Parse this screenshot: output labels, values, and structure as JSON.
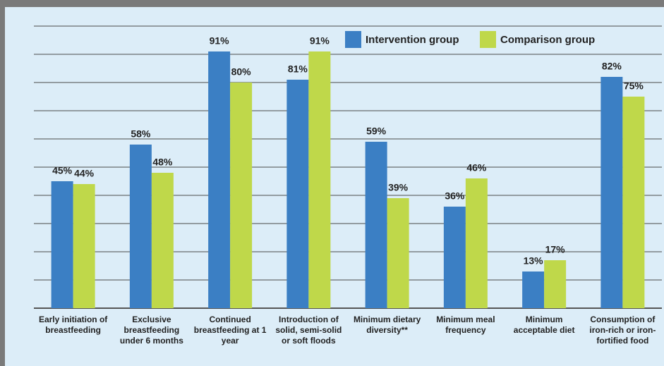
{
  "chart_data": {
    "type": "bar",
    "categories": [
      "Early initiation of breastfeeding",
      "Exclusive breastfeeding under 6 months",
      "Continued breastfeeding at 1 year",
      "Introduction of solid, semi-solid or soft floods",
      "Minimum dietary diversity**",
      "Minimum meal frequency",
      "Minimum acceptable diet",
      "Consumption of iron-rich or iron-fortified food"
    ],
    "series": [
      {
        "name": "Intervention group",
        "color": "#3b7fc4",
        "values": [
          45,
          58,
          91,
          81,
          59,
          36,
          13,
          82
        ],
        "value_labels": [
          "45%",
          "58%",
          "91%",
          "81%",
          "59%",
          "36%",
          "13%",
          "82%"
        ]
      },
      {
        "name": "Comparison group",
        "color": "#bfd84a",
        "values": [
          44,
          48,
          80,
          91,
          39,
          46,
          17,
          75
        ],
        "value_labels": [
          "44%",
          "48%",
          "80%",
          "91%",
          "39%",
          "46%",
          "17%",
          "75%"
        ]
      }
    ],
    "ylim": [
      0,
      100
    ],
    "yticks": [
      0,
      10,
      20,
      30,
      40,
      50,
      60,
      70,
      80,
      90,
      100
    ],
    "grid": true,
    "legend": "top-right"
  }
}
